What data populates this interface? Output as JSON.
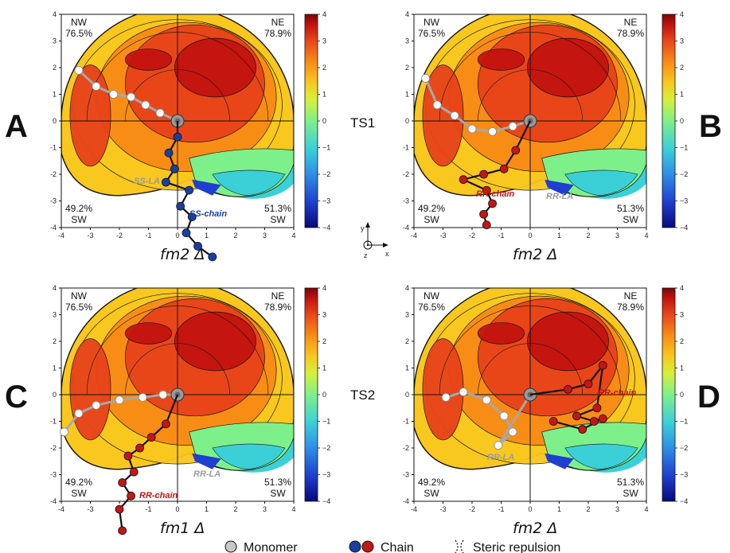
{
  "colors": {
    "colormap": [
      "#08087a",
      "#1f3fd0",
      "#2e8ee6",
      "#3bd0d8",
      "#7ef08a",
      "#d6f03a",
      "#f8c81e",
      "#f88a16",
      "#e8431a",
      "#c4130f",
      "#7e0606"
    ],
    "monomer": "#c8c8c8",
    "chain_blue": "#1a3fa3",
    "chain_red": "#c41616",
    "monomer_label": "#9a9a9a"
  },
  "chart_data": [
    {
      "panel": "A",
      "type": "heatmap",
      "xlabel": "fm2 Δ",
      "xlim": [
        -4,
        4
      ],
      "ylim": [
        -4,
        4
      ],
      "xticks": [
        -4,
        -3,
        -2,
        -1,
        0,
        1,
        2,
        3,
        4
      ],
      "yticks": [
        -4,
        -3,
        -2,
        -1,
        0,
        1,
        2,
        3,
        4
      ],
      "colorbar": {
        "range": [
          -4,
          4
        ],
        "ticks": [
          4,
          3,
          2,
          1,
          0,
          -1,
          -2,
          -3,
          -4
        ]
      },
      "quadrants": {
        "nw": {
          "name": "NW",
          "value": "76.5%"
        },
        "ne": {
          "name": "NE",
          "value": "78.9%"
        },
        "sw": {
          "name": "SW",
          "value": "49.2%"
        },
        "se": {
          "name": "SW",
          "value": "51.3%"
        }
      },
      "annotations": [
        {
          "text": "SS-LA",
          "color": "monomer_label"
        },
        {
          "text": "SS-chain",
          "color": "chain_blue"
        }
      ],
      "chain_color": "chain_blue",
      "monomer_path": [
        [
          -3.4,
          1.9
        ],
        [
          -2.8,
          1.3
        ],
        [
          -2.2,
          1.0
        ],
        [
          -1.6,
          0.9
        ],
        [
          -1.1,
          0.6
        ],
        [
          -0.6,
          0.3
        ],
        [
          0.0,
          0.0
        ]
      ],
      "chain_path": [
        [
          0.0,
          0.0
        ],
        [
          0.0,
          -0.6
        ],
        [
          -0.3,
          -1.2
        ],
        [
          -0.1,
          -1.8
        ],
        [
          -0.4,
          -2.3
        ],
        [
          0.4,
          -2.6
        ],
        [
          0.1,
          -3.2
        ],
        [
          0.5,
          -3.6
        ],
        [
          0.3,
          -4.2
        ],
        [
          0.7,
          -4.7
        ],
        [
          1.2,
          -5.1
        ]
      ]
    },
    {
      "panel": "B",
      "type": "heatmap",
      "xlabel": "fm2 Δ",
      "xlim": [
        -4,
        4
      ],
      "ylim": [
        -4,
        4
      ],
      "xticks": [
        -4,
        -3,
        -2,
        -1,
        0,
        1,
        2,
        3,
        4
      ],
      "yticks": [
        -4,
        -3,
        -2,
        -1,
        0,
        1,
        2,
        3,
        4
      ],
      "colorbar": {
        "range": [
          -4,
          4
        ],
        "ticks": [
          4,
          3,
          2,
          1,
          0,
          -1,
          -2,
          -3,
          -4
        ]
      },
      "quadrants": {
        "nw": {
          "name": "NW",
          "value": "76.5%"
        },
        "ne": {
          "name": "NE",
          "value": "78.9%"
        },
        "sw": {
          "name": "SW",
          "value": "49.2%"
        },
        "se": {
          "name": "SW",
          "value": "51.3%"
        }
      },
      "annotations": [
        {
          "text": "RR-chain",
          "color": "chain_red"
        },
        {
          "text": "RR-LA",
          "color": "monomer_label"
        }
      ],
      "chain_color": "chain_red",
      "monomer_path": [
        [
          -3.6,
          1.6
        ],
        [
          -3.2,
          0.6
        ],
        [
          -2.6,
          0.2
        ],
        [
          -2.0,
          -0.3
        ],
        [
          -1.3,
          -0.4
        ],
        [
          -0.6,
          -0.2
        ],
        [
          0.0,
          0.0
        ]
      ],
      "chain_path": [
        [
          0.0,
          0.0
        ],
        [
          -0.5,
          -1.1
        ],
        [
          -0.9,
          -1.8
        ],
        [
          -1.6,
          -2.0
        ],
        [
          -2.3,
          -2.2
        ],
        [
          -1.5,
          -2.6
        ],
        [
          -1.3,
          -3.1
        ],
        [
          -1.6,
          -3.5
        ],
        [
          -1.5,
          -3.9
        ]
      ]
    },
    {
      "panel": "C",
      "type": "heatmap",
      "xlabel": "fm1 Δ",
      "xlim": [
        -4,
        4
      ],
      "ylim": [
        -4,
        4
      ],
      "xticks": [
        -4,
        -3,
        -2,
        -1,
        0,
        1,
        2,
        3,
        4
      ],
      "yticks": [
        -4,
        -3,
        -2,
        -1,
        0,
        1,
        2,
        3,
        4
      ],
      "colorbar": {
        "range": [
          -4,
          4
        ],
        "ticks": [
          4,
          3,
          2,
          1,
          0,
          -1,
          -2,
          -3,
          -4
        ]
      },
      "quadrants": {
        "nw": {
          "name": "NW",
          "value": "76.5%"
        },
        "ne": {
          "name": "NE",
          "value": "78.9%"
        },
        "sw": {
          "name": "SW",
          "value": "49.2%"
        },
        "se": {
          "name": "SW",
          "value": "51.3%"
        }
      },
      "annotations": [
        {
          "text": "RR-chain",
          "color": "chain_red"
        },
        {
          "text": "RR-LA",
          "color": "monomer_label"
        }
      ],
      "chain_color": "chain_red",
      "monomer_path": [
        [
          -3.9,
          -1.4
        ],
        [
          -3.4,
          -0.7
        ],
        [
          -2.8,
          -0.4
        ],
        [
          -2.0,
          -0.2
        ],
        [
          -1.2,
          -0.1
        ],
        [
          -0.5,
          0.0
        ],
        [
          0.0,
          0.0
        ]
      ],
      "chain_path": [
        [
          0.0,
          0.0
        ],
        [
          -0.4,
          -1.1
        ],
        [
          -0.9,
          -1.6
        ],
        [
          -1.3,
          -2.0
        ],
        [
          -1.7,
          -2.3
        ],
        [
          -1.5,
          -2.9
        ],
        [
          -1.9,
          -3.3
        ],
        [
          -1.6,
          -3.8
        ],
        [
          -2.0,
          -4.3
        ],
        [
          -1.9,
          -5.1
        ]
      ]
    },
    {
      "panel": "D",
      "type": "heatmap",
      "xlabel": "fm2 Δ",
      "xlim": [
        -4,
        4
      ],
      "ylim": [
        -4,
        4
      ],
      "xticks": [
        -4,
        -3,
        -2,
        -1,
        0,
        1,
        2,
        3,
        4
      ],
      "yticks": [
        -4,
        -3,
        -2,
        -1,
        0,
        1,
        2,
        3,
        4
      ],
      "colorbar": {
        "range": [
          -4,
          4
        ],
        "ticks": [
          4,
          3,
          2,
          1,
          0,
          -1,
          -2,
          -3,
          -4
        ]
      },
      "quadrants": {
        "nw": {
          "name": "NW",
          "value": "76.5%"
        },
        "ne": {
          "name": "NE",
          "value": "78.9%"
        },
        "sw": {
          "name": "SW",
          "value": "49.2%"
        },
        "se": {
          "name": "SW",
          "value": "51.3%"
        }
      },
      "annotations": [
        {
          "text": "RR-chain",
          "color": "chain_red"
        },
        {
          "text": "RR-LA",
          "color": "monomer_label"
        }
      ],
      "chain_color": "chain_red",
      "monomer_path": [
        [
          -2.9,
          -0.1
        ],
        [
          -2.3,
          0.1
        ],
        [
          -1.5,
          -0.2
        ],
        [
          -0.9,
          -0.8
        ],
        [
          -0.6,
          -1.4
        ],
        [
          -1.1,
          -1.9
        ],
        [
          0.0,
          0.0
        ]
      ],
      "chain_path": [
        [
          0.0,
          0.0
        ],
        [
          1.3,
          0.2
        ],
        [
          2.0,
          0.4
        ],
        [
          2.5,
          1.1
        ],
        [
          2.3,
          -0.5
        ],
        [
          1.6,
          -0.8
        ],
        [
          2.2,
          -1.0
        ],
        [
          2.5,
          -0.9
        ],
        [
          1.8,
          -1.3
        ],
        [
          0.8,
          -1.0
        ]
      ]
    }
  ],
  "header": {
    "ts1": "TS1",
    "ts2": "TS2"
  },
  "legend": {
    "monomer": "Monomer",
    "chain": "Chain",
    "steric": "Steric repulsion",
    "axes_labels": {
      "y": "y",
      "z": "z",
      "x": "x"
    }
  }
}
